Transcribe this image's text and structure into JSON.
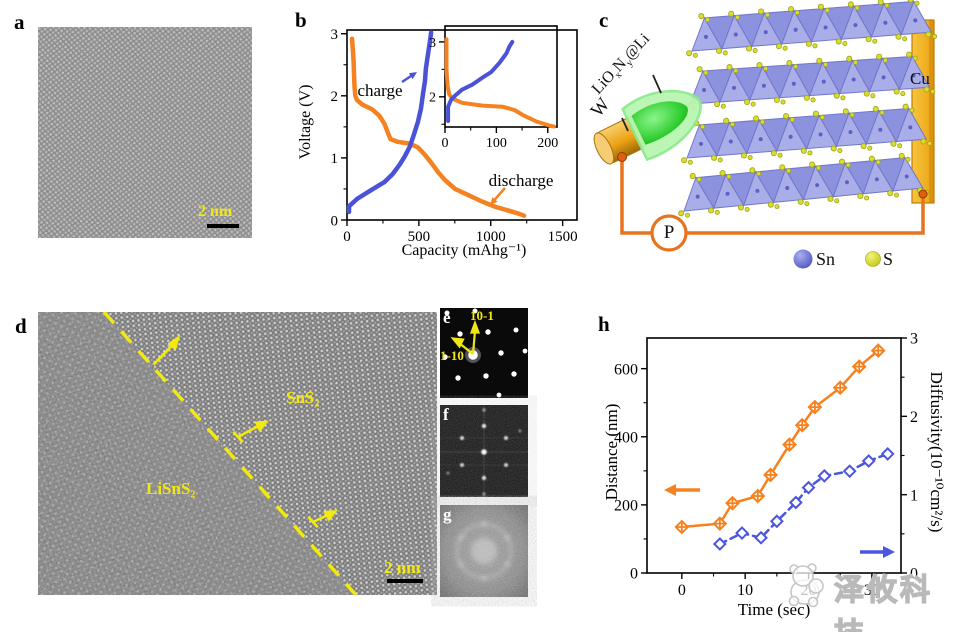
{
  "panels": {
    "a": {
      "label": "a",
      "scalebar": "2 nm"
    },
    "b": {
      "label": "b",
      "xlabel": "Capacity (mAhg⁻¹)",
      "ylabel": "Voltage (V)",
      "charge": "charge",
      "discharge": "discharge"
    },
    "c": {
      "label": "c",
      "tip_w": "W",
      "coat_p1": "LiO",
      "coat_sub1": "x",
      "coat_p2": "N",
      "coat_sub2": "y",
      "coat_p3": "@Li",
      "electrode": "Cu",
      "meter": "P",
      "legend_sn": "Sn",
      "legend_s": "S",
      "sn_color": "#4d54c0",
      "s_color": "#d9de2e"
    },
    "d": {
      "label": "d",
      "region_right": "SnS₂",
      "region_left": "LiSnS₂",
      "scalebar": "2 nm"
    },
    "e": {
      "label": "e",
      "vec_up": "10-1",
      "vec_left": "1-10"
    },
    "f": {
      "label": "f"
    },
    "g": {
      "label": "g"
    },
    "h": {
      "label": "h",
      "xlabel": "Time (sec)",
      "ylabel_left": "Distance (nm)",
      "ylabel_right": "Diffusivity(10⁻¹⁰cm²/s)"
    }
  },
  "watermark": {
    "text": "泽攸科技"
  },
  "colors": {
    "orange": "#f58220",
    "blue": "#4a52d8",
    "yellow_annot": "#f2e713"
  },
  "chart_data": [
    {
      "id": "chart-b",
      "type": "line",
      "title": "",
      "xlabel": "Capacity (mAhg⁻¹)",
      "ylabel": "Voltage (V)",
      "xlim": [
        0,
        1600
      ],
      "ylim": [
        0,
        3.06
      ],
      "xticks": [
        0,
        500,
        1000,
        1500
      ],
      "xminor": [
        250,
        750,
        1250
      ],
      "yticks": [
        0,
        1,
        2,
        3
      ],
      "yminor": [
        0.5,
        1.5,
        2.5
      ],
      "font": 15,
      "series": [
        {
          "name": "discharge",
          "color": "#f58220",
          "width": 4.5,
          "x": [
            35,
            40,
            46,
            49,
            52,
            58,
            70,
            106,
            176,
            225,
            260,
            282,
            303,
            352,
            437,
            493,
            542,
            584,
            634,
            683,
            753,
            845,
            937,
            1035,
            1127,
            1197,
            1232
          ],
          "y": [
            2.92,
            2.75,
            2.55,
            2.35,
            2.15,
            2.0,
            1.93,
            1.86,
            1.78,
            1.68,
            1.55,
            1.42,
            1.3,
            1.26,
            1.23,
            1.17,
            1.05,
            0.93,
            0.77,
            0.64,
            0.5,
            0.4,
            0.3,
            0.21,
            0.15,
            0.1,
            0.07
          ]
        },
        {
          "name": "charge",
          "color": "#4a52d8",
          "width": 4.5,
          "x": [
            14,
            14,
            70,
            160,
            260,
            317,
            366,
            401,
            437,
            465,
            493,
            514,
            528,
            542,
            549,
            563,
            577,
            585
          ],
          "y": [
            0.13,
            0.22,
            0.34,
            0.47,
            0.61,
            0.74,
            0.89,
            1.02,
            1.18,
            1.37,
            1.58,
            1.79,
            2.02,
            2.23,
            2.44,
            2.66,
            2.87,
            3.02
          ]
        }
      ]
    },
    {
      "id": "chart-b-inset",
      "type": "line",
      "xlim": [
        0,
        218
      ],
      "ylim": [
        1.45,
        3.29
      ],
      "xticks": [
        0,
        100,
        200
      ],
      "xminor": [
        50,
        150
      ],
      "yticks": [
        2,
        3
      ],
      "yminor": [
        1.5,
        2.5
      ],
      "font": 14,
      "series": [
        {
          "name": "discharge",
          "color": "#f58220",
          "width": 4,
          "x": [
            3,
            3,
            5,
            8,
            14,
            33,
            73,
            112,
            135,
            151,
            178,
            202,
            212
          ],
          "y": [
            3.05,
            2.5,
            2.2,
            2.05,
            1.97,
            1.89,
            1.84,
            1.82,
            1.76,
            1.67,
            1.55,
            1.48,
            1.46
          ]
        },
        {
          "name": "charge",
          "color": "#4a52d8",
          "width": 4,
          "x": [
            6,
            6,
            12,
            22,
            33,
            53,
            73,
            90,
            106,
            120,
            125,
            131
          ],
          "y": [
            1.56,
            1.82,
            1.95,
            2.04,
            2.13,
            2.22,
            2.35,
            2.45,
            2.62,
            2.8,
            2.91,
            3.0
          ]
        }
      ]
    },
    {
      "id": "chart-h",
      "type": "line",
      "xlabel": "Time (sec)",
      "ylabel": "Distance (nm)",
      "ylabel2": "Diffusivity(10⁻¹⁰cm²/s)",
      "xlim": [
        -5.5,
        34.6
      ],
      "ylim": [
        0,
        690
      ],
      "y2lim": [
        0,
        3
      ],
      "xticks": [
        0,
        10,
        20,
        30
      ],
      "xminor": [
        5,
        15,
        25
      ],
      "yticks": [
        0,
        200,
        400,
        600
      ],
      "yminor": [
        100,
        300,
        500
      ],
      "y2ticks": [
        0,
        1,
        2,
        3
      ],
      "y2minor": [
        0.5,
        1.5,
        2.5
      ],
      "font": 16,
      "series": [
        {
          "name": "distance",
          "color": "#f58220",
          "width": 2.5,
          "marker": "xdiamond",
          "x": [
            0,
            6,
            8,
            12,
            14,
            17,
            19,
            21,
            25,
            28,
            31
          ],
          "y": [
            135,
            145,
            205,
            226,
            288,
            377,
            434,
            487,
            544,
            606,
            653
          ]
        },
        {
          "name": "diffusivity",
          "color": "#4a55e0",
          "width": 2.5,
          "marker": "odiamond",
          "dash": "7 5",
          "axis": "right",
          "x": [
            6,
            9.5,
            12.5,
            15,
            18,
            20,
            22.5,
            26.5,
            29.5,
            32.5
          ],
          "y": [
            0.37,
            0.51,
            0.45,
            0.66,
            0.9,
            1.09,
            1.24,
            1.3,
            1.43,
            1.52
          ]
        }
      ]
    }
  ]
}
